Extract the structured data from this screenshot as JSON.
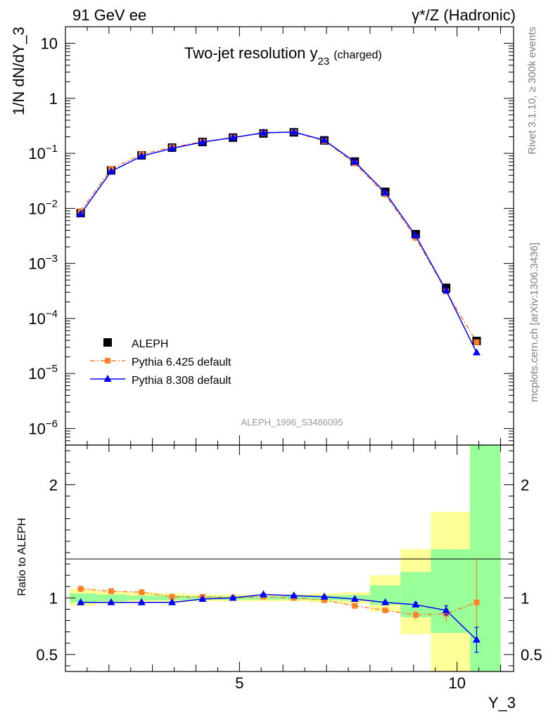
{
  "header": {
    "left": "91 GeV ee",
    "right": "γ*/Z (Hadronic)"
  },
  "side_text": {
    "top": "Rivet 3.1.10, ≥ 300k events",
    "bottom": "mcplots.cern.ch [arXiv:1306.3436]"
  },
  "watermark": "ALEPH_1996_S3486095",
  "chart_data": [
    {
      "type": "line",
      "title": "Two-jet resolution y",
      "title_sub": "23",
      "title_suffix": "(charged)",
      "ylabel": "1/N dN/dY_3",
      "xlabel": "",
      "y_scale": "log",
      "ylim": [
        5e-07,
        20
      ],
      "xlim": [
        1.0,
        11.3
      ],
      "y_ticks": [
        {
          "value": 1e-06,
          "base": "10",
          "exp": "−6"
        },
        {
          "value": 1e-05,
          "base": "10",
          "exp": "−5"
        },
        {
          "value": 0.0001,
          "base": "10",
          "exp": "−4"
        },
        {
          "value": 0.001,
          "base": "10",
          "exp": "−3"
        },
        {
          "value": 0.01,
          "base": "10",
          "exp": "−2"
        },
        {
          "value": 0.1,
          "base": "10",
          "exp": "−1"
        },
        {
          "value": 1,
          "base": "1",
          "exp": ""
        },
        {
          "value": 10,
          "base": "10",
          "exp": ""
        }
      ],
      "legend_position": "bottom-left",
      "series": [
        {
          "name": "ALEPH",
          "color": "#000000",
          "marker": "square",
          "x": [
            1.35,
            2.05,
            2.75,
            3.45,
            4.15,
            4.85,
            5.55,
            6.25,
            6.95,
            7.65,
            8.35,
            9.05,
            9.75,
            10.45
          ],
          "y": [
            0.0082,
            0.049,
            0.092,
            0.127,
            0.161,
            0.193,
            0.23,
            0.241,
            0.172,
            0.071,
            0.02,
            0.0034,
            0.00036,
            3.9e-05
          ]
        },
        {
          "name": "Pythia 6.425 default",
          "color": "#ff7f2a",
          "marker": "square-small",
          "line": "dashdot",
          "x": [
            1.35,
            2.05,
            2.75,
            3.45,
            4.15,
            4.85,
            5.55,
            6.25,
            6.95,
            7.65,
            8.35,
            9.05,
            9.75,
            10.45
          ],
          "y": [
            0.0089,
            0.052,
            0.096,
            0.129,
            0.163,
            0.194,
            0.232,
            0.242,
            0.168,
            0.066,
            0.0179,
            0.0029,
            0.00031,
            3.7e-05
          ]
        },
        {
          "name": "Pythia 8.308 default",
          "color": "#0000ff",
          "marker": "triangle",
          "line": "solid",
          "x": [
            1.35,
            2.05,
            2.75,
            3.45,
            4.15,
            4.85,
            5.55,
            6.25,
            6.95,
            7.65,
            8.35,
            9.05,
            9.75,
            10.45
          ],
          "y": [
            0.0079,
            0.047,
            0.089,
            0.123,
            0.16,
            0.193,
            0.237,
            0.244,
            0.174,
            0.07,
            0.0193,
            0.0032,
            0.00032,
            2.4e-05
          ]
        }
      ]
    },
    {
      "type": "line",
      "title": "",
      "ylabel": "Ratio to ALEPH",
      "xlabel": "Y_3",
      "ylim": [
        0.35,
        2.35
      ],
      "xlim": [
        1.0,
        11.3
      ],
      "y_ticks": [
        {
          "value": 0.5,
          "label": "0.5"
        },
        {
          "value": 1,
          "label": "1"
        },
        {
          "value": 2,
          "label": "2"
        }
      ],
      "x_ticks": [
        {
          "value": 5,
          "label": "5"
        },
        {
          "value": 10,
          "label": "10"
        }
      ],
      "bands": [
        {
          "x0": 1.1,
          "x1": 1.7,
          "yellow": [
            0.93,
            1.08
          ],
          "green": [
            0.96,
            1.04
          ]
        },
        {
          "x0": 1.7,
          "x1": 2.4,
          "yellow": [
            0.95,
            1.06
          ],
          "green": [
            0.97,
            1.03
          ]
        },
        {
          "x0": 2.4,
          "x1": 3.1,
          "yellow": [
            0.96,
            1.05
          ],
          "green": [
            0.98,
            1.02
          ]
        },
        {
          "x0": 3.1,
          "x1": 3.8,
          "yellow": [
            0.96,
            1.04
          ],
          "green": [
            0.98,
            1.02
          ]
        },
        {
          "x0": 3.8,
          "x1": 4.5,
          "yellow": [
            0.97,
            1.03
          ],
          "green": [
            0.985,
            1.015
          ]
        },
        {
          "x0": 4.5,
          "x1": 5.2,
          "yellow": [
            0.97,
            1.03
          ],
          "green": [
            0.985,
            1.015
          ]
        },
        {
          "x0": 5.2,
          "x1": 5.9,
          "yellow": [
            0.97,
            1.03
          ],
          "green": [
            0.985,
            1.015
          ]
        },
        {
          "x0": 5.9,
          "x1": 6.6,
          "yellow": [
            0.97,
            1.03
          ],
          "green": [
            0.985,
            1.015
          ]
        },
        {
          "x0": 6.6,
          "x1": 7.3,
          "yellow": [
            0.96,
            1.04
          ],
          "green": [
            0.98,
            1.02
          ]
        },
        {
          "x0": 7.3,
          "x1": 8.0,
          "yellow": [
            0.95,
            1.05
          ],
          "green": [
            0.975,
            1.025
          ]
        },
        {
          "x0": 8.0,
          "x1": 8.7,
          "yellow": [
            0.88,
            1.2
          ],
          "green": [
            0.94,
            1.11
          ]
        },
        {
          "x0": 8.7,
          "x1": 9.4,
          "yellow": [
            0.68,
            1.43
          ],
          "green": [
            0.83,
            1.23
          ]
        },
        {
          "x0": 9.4,
          "x1": 10.3,
          "yellow": [
            0.35,
            1.76
          ],
          "green": [
            0.69,
            1.43
          ]
        },
        {
          "x0": 10.3,
          "x1": 11.0,
          "yellow": [
            0.35,
            2.35
          ],
          "green": [
            0.35,
            2.35
          ]
        }
      ],
      "series": [
        {
          "name": "Pythia 6.425 default",
          "color": "#ff7f2a",
          "x": [
            1.35,
            2.05,
            2.75,
            3.45,
            4.15,
            4.85,
            5.55,
            6.25,
            6.95,
            7.65,
            8.35,
            9.05,
            9.75,
            10.45
          ],
          "y": [
            1.08,
            1.06,
            1.05,
            1.01,
            1.01,
            1.0,
            1.01,
            1.0,
            0.98,
            0.93,
            0.89,
            0.85,
            0.86,
            0.96
          ],
          "err": [
            0.03,
            0.02,
            0.02,
            0.01,
            0.01,
            0.01,
            0.01,
            0.01,
            0.01,
            0.01,
            0.02,
            0.04,
            0.08,
            0.4
          ]
        },
        {
          "name": "Pythia 8.308 default",
          "color": "#0000ff",
          "x": [
            1.35,
            2.05,
            2.75,
            3.45,
            4.15,
            4.85,
            5.55,
            6.25,
            6.95,
            7.65,
            8.35,
            9.05,
            9.75,
            10.45
          ],
          "y": [
            0.96,
            0.96,
            0.96,
            0.96,
            0.99,
            1.0,
            1.03,
            1.02,
            1.01,
            0.99,
            0.96,
            0.94,
            0.89,
            0.63
          ],
          "err": [
            0.01,
            0.01,
            0.01,
            0.01,
            0.01,
            0.01,
            0.01,
            0.01,
            0.01,
            0.01,
            0.01,
            0.02,
            0.04,
            0.11
          ]
        }
      ]
    }
  ]
}
